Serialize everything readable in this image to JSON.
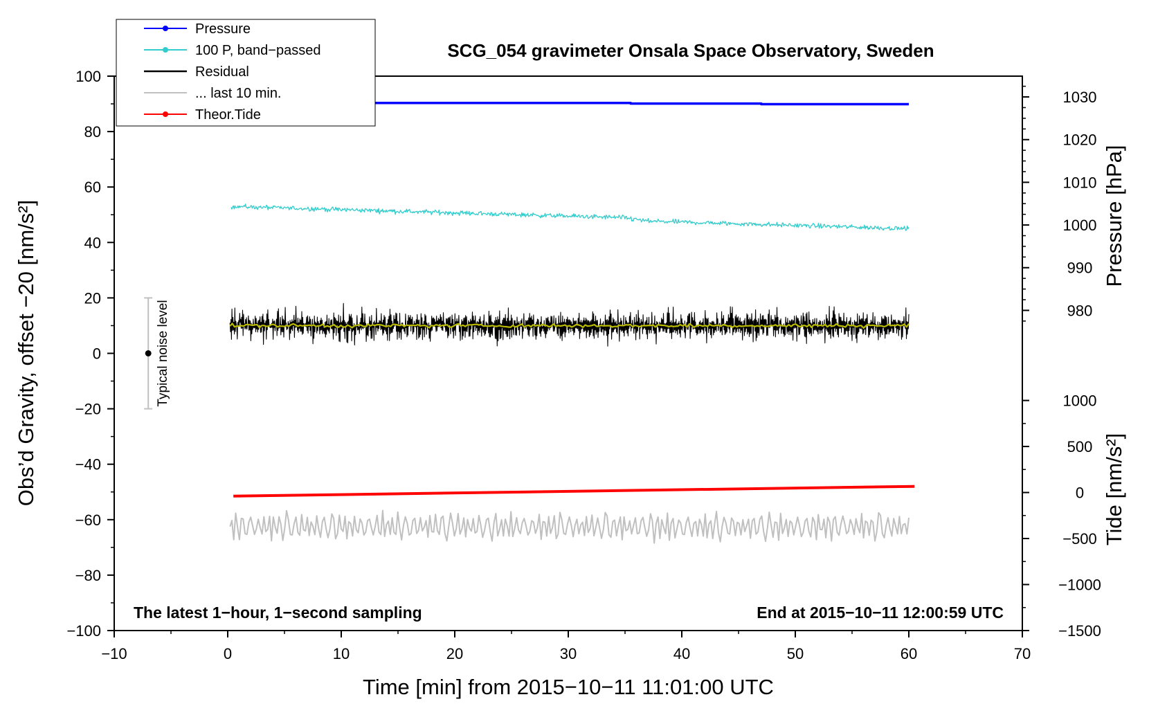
{
  "chart_data": {
    "type": "line",
    "title": "SCG_054 gravimeter Onsala Space Observatory, Sweden",
    "xlabel": "Time [min] from 2015−10−11 11:01:00 UTC",
    "ylabel_left": "Obs’d Gravity, offset −20 [nm/s²]",
    "ylabel_right_pressure": "Pressure [hPa]",
    "ylabel_right_tide": "Tide [nm/s²]",
    "xlim": [
      -10,
      70
    ],
    "ylim": [
      -100,
      100
    ],
    "x_ticks": [
      -10,
      0,
      10,
      20,
      30,
      40,
      50,
      60,
      70
    ],
    "x_tick_labels": [
      "−10",
      "0",
      "10",
      "20",
      "30",
      "40",
      "50",
      "60",
      "70"
    ],
    "y_ticks": [
      -100,
      -80,
      -60,
      -40,
      -20,
      0,
      20,
      40,
      60,
      80,
      100
    ],
    "y_tick_labels": [
      "−100",
      "−80",
      "−60",
      "−40",
      "−20",
      "0",
      "20",
      "40",
      "60",
      "80",
      "100"
    ],
    "pressure_axis": {
      "ticks": [
        980,
        990,
        1000,
        1010,
        1020,
        1030
      ],
      "tick_labels": [
        "980",
        "990",
        "1000",
        "1010",
        "1020",
        "1030"
      ],
      "map_ref": [
        [
          980,
          15.5
        ],
        [
          1030,
          92.5
        ]
      ]
    },
    "tide_axis": {
      "ticks": [
        -1500,
        -1000,
        -500,
        0,
        500,
        1000
      ],
      "tick_labels": [
        "−1500",
        "−1000",
        "−500",
        "0",
        "500",
        "1000"
      ],
      "map_ref": [
        [
          -1500,
          -100
        ],
        [
          1000,
          -17
        ]
      ]
    },
    "legend": [
      {
        "label": "Pressure",
        "color": "#0000ff",
        "marker": true
      },
      {
        "label": "100 P, band−passed",
        "color": "#33cccc",
        "marker": true
      },
      {
        "label": "Residual",
        "color": "#000000",
        "marker": false
      },
      {
        "label": "... last 10 min.",
        "color": "#c0c0c0",
        "marker": false
      },
      {
        "label": "Theor.Tide",
        "color": "#ff0000",
        "marker": true
      }
    ],
    "series": [
      {
        "name": "Pressure",
        "color": "#0000ff",
        "width": 3.5,
        "x_range": [
          0.3,
          60
        ],
        "y": 90.3,
        "step_down": [
          [
            35.5,
            90.1
          ],
          [
            47,
            89.9
          ]
        ]
      },
      {
        "name": "100 P, band-passed",
        "color": "#33cccc",
        "x_range": [
          0.3,
          60
        ],
        "y_start": 53.0,
        "y_end": 46.0,
        "noise_amp": 1.3
      },
      {
        "name": "Residual",
        "color": "#000000",
        "x_range": [
          0.2,
          60
        ],
        "y_center": 10.0,
        "noise_amp": 5.5
      },
      {
        "name": "Residual smoothed",
        "color": "#bbbb00",
        "x_range": [
          0.2,
          60
        ],
        "y_center": 10.0,
        "noise_amp": 0.6
      },
      {
        "name": "... last 10 min.",
        "color": "#c0c0c0",
        "x_range": [
          0.2,
          60
        ],
        "y_center": -62.5,
        "noise_amp": 5.0
      },
      {
        "name": "Theor.Tide",
        "color": "#ff0000",
        "width": 4,
        "x": [
          0.5,
          60.5
        ],
        "y": [
          -51.5,
          -48.0
        ]
      }
    ],
    "noise_marker": {
      "label": "Typical noise level",
      "x": -7,
      "y": 0,
      "y_low": -20,
      "y_high": 20
    },
    "annotation_left": "The latest 1−hour, 1−second sampling",
    "annotation_right": "End at 2015−10−11 12:00:59 UTC"
  }
}
